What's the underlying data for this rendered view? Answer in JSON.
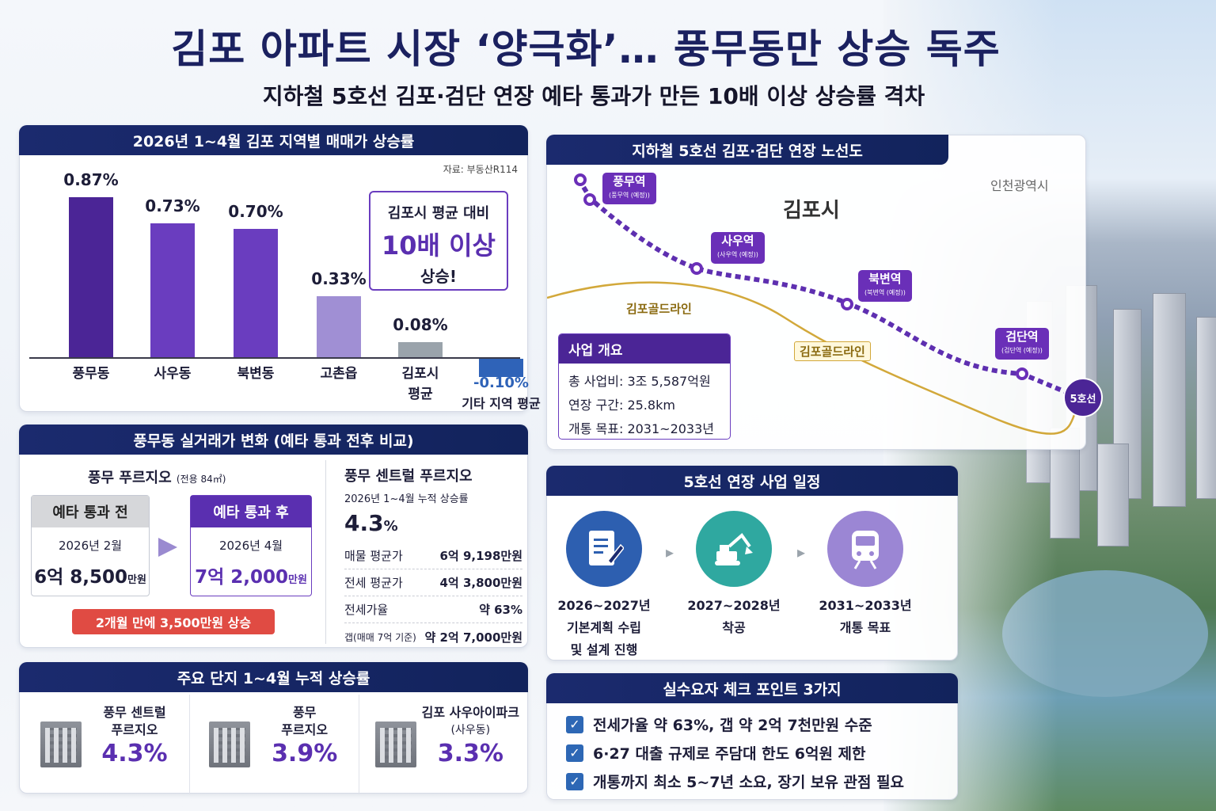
{
  "title": "김포 아파트 시장 ‘양극화’… 풍무동만 상승 독주",
  "subtitle": "지하철 5호선 김포·검단 연장 예타 통과가 만든 10배 이상 상승률 격차",
  "chart_panel": {
    "header": "2026년 1~4월 김포 지역별 매매가 상승률",
    "source": "자료: 부동산R114",
    "callout": {
      "line1": "김포시 평균 대비",
      "line2": "10배 이상",
      "line3": "상승!"
    }
  },
  "chart_data": {
    "type": "bar",
    "categories": [
      "풍무동",
      "사우동",
      "북변동",
      "고촌읍",
      "김포시 평균",
      "기타 지역 평균"
    ],
    "values": [
      0.87,
      0.73,
      0.7,
      0.33,
      0.08,
      -0.1
    ],
    "value_labels": [
      "0.87%",
      "0.73%",
      "0.70%",
      "0.33%",
      "0.08%",
      "-0.10%"
    ],
    "cat_line1": [
      "풍무동",
      "사우동",
      "북변동",
      "고촌읍",
      "김포시",
      "-0.10%"
    ],
    "cat_line2": [
      "",
      "",
      "",
      "",
      "평균",
      "기타 지역 평균"
    ],
    "colors": [
      "#4b2596",
      "#6a3dbf",
      "#6a3dbf",
      "#a08fd4",
      "#9aa3ab",
      "#2f63b8"
    ],
    "unit": "%"
  },
  "price_panel": {
    "header": "풍무동 실거래가 변화 (예타 통과 전후 비교)",
    "complex_name": "풍무 푸르지오",
    "complex_area": "(전용 84㎡)",
    "before": {
      "label": "예타 통과 전",
      "date": "2026년 2월",
      "price_big": "6억 8,500",
      "price_unit": "만원"
    },
    "after": {
      "label": "예타 통과 후",
      "date": "2026년 4월",
      "price_big": "7억 2,000",
      "price_unit": "만원"
    },
    "change_note": "2개월 만에 3,500만원 상승",
    "central": {
      "name": "풍무 센트럴 푸르지오",
      "sub": "2026년 1~4월 누적 상승률",
      "rate": "4.3",
      "rate_unit": "%",
      "rows": [
        {
          "k": "매물 평균가",
          "v": "6억 9,198만원"
        },
        {
          "k": "전세 평균가",
          "v": "4억 3,800만원"
        },
        {
          "k": "전세가율",
          "v": "약 63%"
        },
        {
          "k": "갭(매매 7억 기준)",
          "v": "약 2억 7,000만원"
        }
      ]
    }
  },
  "complex_panel": {
    "header": "주요 단지 1~4월 누적 상승률",
    "items": [
      {
        "name1": "풍무 센트럴",
        "name2": "푸르지오",
        "rate": "4.3%"
      },
      {
        "name1": "풍무",
        "name2": "푸르지오",
        "rate": "3.9%"
      },
      {
        "name1": "김포 사우아이파크",
        "name2": "(사우동)",
        "rate": "3.3%"
      }
    ]
  },
  "map_panel": {
    "header": "지하철 5호선 김포·검단 연장 노선도",
    "city": "김포시",
    "incheon": "인천광역시",
    "goldline1": "김포골드라인",
    "goldline2": "김포골드라인",
    "line_badge": "5호선",
    "stations": [
      {
        "name": "풍무역",
        "sub": "(풍무역 (예정))"
      },
      {
        "name": "사우역",
        "sub": "(사우역 (예정))"
      },
      {
        "name": "북변역",
        "sub": "(북변역 (예정))"
      },
      {
        "name": "검단역",
        "sub": "(검단역 (예정))"
      }
    ],
    "overview": {
      "title": "사업 개요",
      "rows": [
        "총 사업비: 3조 5,587억원",
        "연장 구간: 25.8km",
        "개통 목표: 2031~2033년"
      ]
    }
  },
  "schedule_panel": {
    "header": "5호선 연장 사업 일정",
    "steps": [
      {
        "period": "2026~2027년",
        "desc1": "기본계획 수립",
        "desc2": "및 설계 진행",
        "icon": "document-pen-icon"
      },
      {
        "period": "2027~2028년",
        "desc1": "착공",
        "desc2": "",
        "icon": "excavator-icon"
      },
      {
        "period": "2031~2033년",
        "desc1": "개통 목표",
        "desc2": "",
        "icon": "train-icon"
      }
    ]
  },
  "checkpoint_panel": {
    "header": "실수요자 체크 포인트 3가지",
    "items": [
      "전세가율 약 63%, 갭 약 2억 7천만원 수준",
      "6·27 대출 규제로 주담대 한도 6억원 제한",
      "개통까지 최소 5~7년 소요, 장기 보유 관점 필요"
    ]
  }
}
